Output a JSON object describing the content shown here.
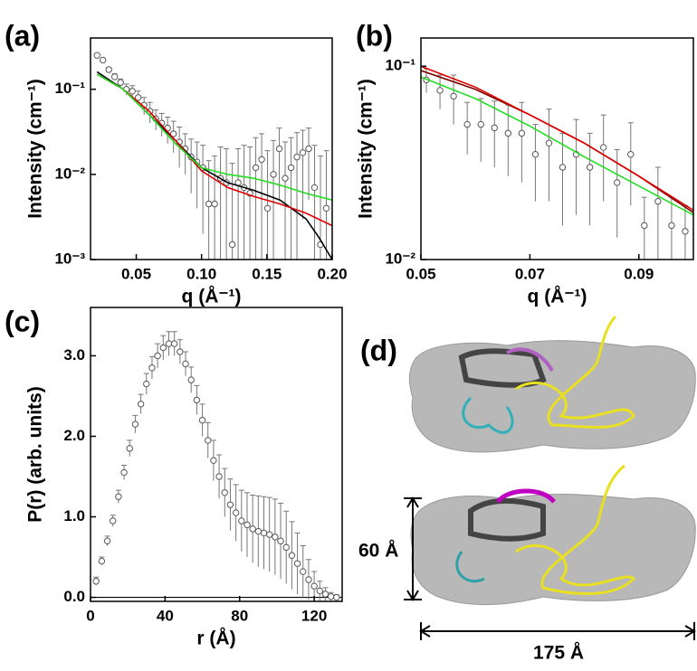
{
  "chart_data": [
    {
      "type": "scatter",
      "panel_label": "(a)",
      "y_label": "Intensity (cm⁻¹)",
      "x_label": "q (Å⁻¹)",
      "log_y": true,
      "xlim": [
        0.015,
        0.2
      ],
      "ylim": [
        0.001,
        0.4
      ],
      "xticks": [
        {
          "value": 0.05,
          "label": "0.05"
        },
        {
          "value": 0.1,
          "label": "0.10"
        },
        {
          "value": 0.15,
          "label": "0.15"
        },
        {
          "value": 0.2,
          "label": "0.20"
        }
      ],
      "yticks": [
        {
          "value": 0.001,
          "label": "10⁻³"
        },
        {
          "value": 0.01,
          "label": "10⁻²"
        },
        {
          "value": 0.1,
          "label": "10⁻¹"
        }
      ],
      "series": [
        {
          "mode": "markers",
          "color": "#555555",
          "x": [
            0.02,
            0.0245,
            0.029,
            0.0335,
            0.038,
            0.0425,
            0.047,
            0.0515,
            0.056,
            0.0605,
            0.065,
            0.0695,
            0.074,
            0.0785,
            0.083,
            0.0875,
            0.092,
            0.0965,
            0.101,
            0.1055,
            0.11,
            0.1145,
            0.119,
            0.1235,
            0.128,
            0.1325,
            0.137,
            0.1415,
            0.146,
            0.1505,
            0.155,
            0.1595,
            0.164,
            0.1685,
            0.173,
            0.1775,
            0.182,
            0.1865,
            0.191,
            0.1955
          ],
          "values": [
            0.25,
            0.22,
            0.17,
            0.14,
            0.12,
            0.1,
            0.095,
            0.08,
            0.065,
            0.055,
            0.045,
            0.04,
            0.035,
            0.03,
            0.024,
            0.02,
            0.016,
            0.014,
            0.012,
            0.0045,
            0.0045,
            0.009,
            0.008,
            0.0015,
            0.008,
            0.007,
            0.006,
            0.012,
            0.015,
            0.004,
            0.01,
            0.02,
            0.009,
            0.012,
            0.016,
            0.018,
            0.02,
            0.007,
            0.0015,
            0.004
          ],
          "errors": [
            0.01,
            0.01,
            0.01,
            0.012,
            0.012,
            0.015,
            0.015,
            0.015,
            0.015,
            0.015,
            0.012,
            0.012,
            0.012,
            0.012,
            0.012,
            0.01,
            0.01,
            0.01,
            0.01,
            0.01,
            0.012,
            0.012,
            0.012,
            0.012,
            0.012,
            0.015,
            0.015,
            0.015,
            0.015,
            0.015,
            0.015,
            0.015,
            0.015,
            0.015,
            0.015,
            0.015,
            0.015,
            0.015,
            0.015,
            0.015
          ]
        },
        {
          "mode": "line",
          "color": "#000000",
          "x": [
            0.02,
            0.04,
            0.06,
            0.08,
            0.1,
            0.12,
            0.14,
            0.16,
            0.18,
            0.19,
            0.2
          ],
          "values": [
            0.16,
            0.1,
            0.05,
            0.025,
            0.012,
            0.008,
            0.0065,
            0.005,
            0.003,
            0.0018,
            0.001
          ]
        },
        {
          "mode": "line",
          "color": "#e00000",
          "x": [
            0.02,
            0.04,
            0.06,
            0.08,
            0.1,
            0.12,
            0.14,
            0.16,
            0.18,
            0.2
          ],
          "values": [
            0.15,
            0.1,
            0.055,
            0.025,
            0.011,
            0.007,
            0.0055,
            0.0045,
            0.0035,
            0.0025
          ]
        },
        {
          "mode": "line",
          "color": "#22dd22",
          "x": [
            0.02,
            0.04,
            0.06,
            0.08,
            0.1,
            0.12,
            0.14,
            0.16,
            0.18,
            0.2
          ],
          "values": [
            0.15,
            0.1,
            0.05,
            0.023,
            0.012,
            0.01,
            0.009,
            0.0075,
            0.006,
            0.005
          ]
        }
      ]
    },
    {
      "type": "scatter",
      "panel_label": "(b)",
      "y_label": "Intensity (cm⁻¹)",
      "x_label": "q (Å⁻¹)",
      "log_y": true,
      "xlim": [
        0.05,
        0.1
      ],
      "ylim": [
        0.01,
        0.14
      ],
      "xticks": [
        0.05,
        0.07,
        0.09
      ],
      "yticks": [
        {
          "value": 0.01,
          "label": "10⁻²"
        },
        {
          "value": 0.1,
          "label": "10⁻¹"
        }
      ],
      "series": [
        {
          "mode": "markers",
          "color": "#555555",
          "x": [
            0.051,
            0.0535,
            0.056,
            0.0585,
            0.061,
            0.0635,
            0.066,
            0.0685,
            0.071,
            0.0735,
            0.076,
            0.0785,
            0.081,
            0.0835,
            0.086,
            0.0885,
            0.091,
            0.0935,
            0.096,
            0.0985
          ],
          "values": [
            0.085,
            0.075,
            0.07,
            0.05,
            0.05,
            0.048,
            0.045,
            0.045,
            0.035,
            0.04,
            0.03,
            0.035,
            0.03,
            0.038,
            0.025,
            0.035,
            0.015,
            0.02,
            0.015,
            0.014
          ],
          "errors": [
            0.012,
            0.015,
            0.02,
            0.015,
            0.018,
            0.018,
            0.018,
            0.02,
            0.015,
            0.02,
            0.015,
            0.018,
            0.015,
            0.018,
            0.012,
            0.016,
            0.006,
            0.01,
            0.006,
            0.005
          ]
        },
        {
          "mode": "line",
          "color": "#7a0000",
          "x": [
            0.05,
            0.06,
            0.07,
            0.08,
            0.09,
            0.1
          ],
          "values": [
            0.095,
            0.076,
            0.056,
            0.04,
            0.027,
            0.0175
          ]
        },
        {
          "mode": "line",
          "color": "#e00000",
          "x": [
            0.05,
            0.06,
            0.07,
            0.08,
            0.09,
            0.1
          ],
          "values": [
            0.1,
            0.078,
            0.056,
            0.04,
            0.027,
            0.018
          ]
        },
        {
          "mode": "line",
          "color": "#22dd22",
          "x": [
            0.05,
            0.06,
            0.07,
            0.08,
            0.09,
            0.1
          ],
          "values": [
            0.088,
            0.068,
            0.049,
            0.034,
            0.024,
            0.017
          ]
        }
      ]
    },
    {
      "type": "scatter",
      "panel_label": "(c)",
      "y_label": "P(r) (arb. units)",
      "x_label": "r (Å)",
      "log_y": false,
      "zero_line": true,
      "xlim": [
        0,
        135
      ],
      "ylim": [
        -0.05,
        3.6
      ],
      "xticks": [
        0,
        40,
        80,
        120
      ],
      "yticks": [
        {
          "value": 0,
          "label": "0.0"
        },
        {
          "value": 1,
          "label": "1.0"
        },
        {
          "value": 2,
          "label": "2.0"
        },
        {
          "value": 3,
          "label": "3.0"
        }
      ],
      "series": [
        {
          "mode": "markers",
          "color": "#555555",
          "x": [
            3,
            6,
            9,
            12,
            15,
            18,
            21,
            24,
            27,
            30,
            33,
            36,
            39,
            42,
            45,
            48,
            51,
            54,
            57,
            60,
            63,
            66,
            69,
            72,
            75,
            78,
            81,
            84,
            87,
            90,
            93,
            96,
            99,
            102,
            105,
            108,
            111,
            114,
            117,
            120,
            123,
            126,
            129,
            132
          ],
          "values": [
            0.2,
            0.45,
            0.7,
            0.95,
            1.25,
            1.55,
            1.85,
            2.15,
            2.4,
            2.65,
            2.85,
            3.0,
            3.1,
            3.15,
            3.15,
            3.05,
            2.9,
            2.7,
            2.45,
            2.2,
            1.95,
            1.7,
            1.5,
            1.3,
            1.15,
            1.05,
            0.95,
            0.9,
            0.85,
            0.82,
            0.8,
            0.78,
            0.75,
            0.7,
            0.62,
            0.52,
            0.42,
            0.32,
            0.22,
            0.14,
            0.08,
            0.04,
            0.01,
            0.0
          ],
          "errors": [
            0.05,
            0.05,
            0.06,
            0.07,
            0.08,
            0.09,
            0.1,
            0.11,
            0.12,
            0.13,
            0.14,
            0.15,
            0.15,
            0.15,
            0.15,
            0.15,
            0.15,
            0.16,
            0.18,
            0.2,
            0.22,
            0.25,
            0.27,
            0.3,
            0.32,
            0.35,
            0.38,
            0.4,
            0.42,
            0.44,
            0.45,
            0.46,
            0.47,
            0.47,
            0.45,
            0.42,
            0.38,
            0.32,
            0.25,
            0.18,
            0.12,
            0.08,
            0.05,
            0.03
          ]
        }
      ]
    }
  ],
  "panel_d": {
    "panel_label": "(d)",
    "height_label": "60 Å",
    "width_label": "175 Å"
  }
}
